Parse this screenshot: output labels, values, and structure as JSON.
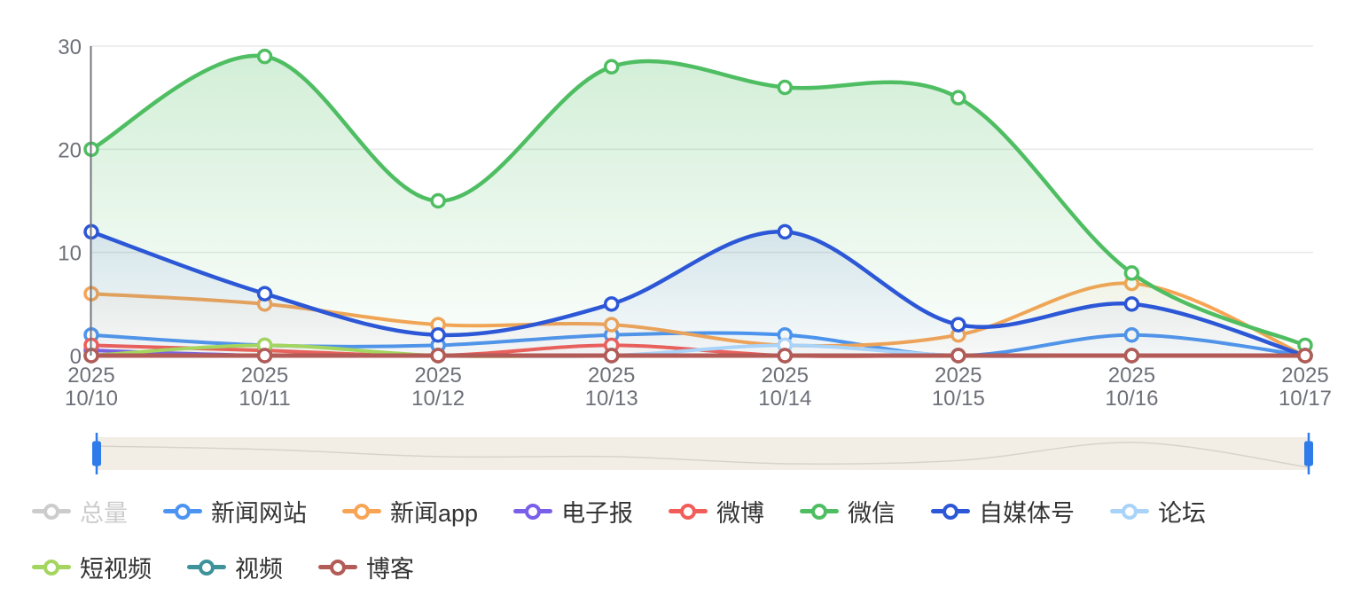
{
  "chart_data": {
    "type": "line",
    "title": "",
    "x_year": "2025",
    "categories": [
      "10/10",
      "10/11",
      "10/12",
      "10/13",
      "10/14",
      "10/15",
      "10/16",
      "10/17"
    ],
    "xlabel": "",
    "ylabel": "",
    "ylim": [
      0,
      30
    ],
    "yticks": [
      "0",
      "10",
      "20",
      "30"
    ],
    "grid": true,
    "smooth": true,
    "legend_position": "bottom",
    "series": [
      {
        "id": "total",
        "name": "总量",
        "color": "#C9C9C9",
        "selected": false,
        "values": null
      },
      {
        "id": "news-site",
        "name": "新闻网站",
        "color": "#4C94F2",
        "selected": true,
        "values": [
          2,
          1,
          1,
          2,
          2,
          0,
          2,
          0
        ]
      },
      {
        "id": "news-app",
        "name": "新闻app",
        "color": "#F8A455",
        "selected": true,
        "values": [
          6,
          5,
          3,
          3,
          1,
          2,
          7,
          0
        ]
      },
      {
        "id": "e-paper",
        "name": "电子报",
        "color": "#7A5FE8",
        "selected": true,
        "values": [
          0.5,
          0,
          0,
          0,
          0,
          0,
          0,
          0
        ]
      },
      {
        "id": "weibo",
        "name": "微博",
        "color": "#F15E59",
        "selected": true,
        "values": [
          1,
          0.5,
          0,
          1,
          0,
          0,
          0,
          0
        ]
      },
      {
        "id": "wechat",
        "name": "微信",
        "color": "#4FBE62",
        "selected": true,
        "values": [
          20,
          29,
          15,
          28,
          26,
          25,
          8,
          1
        ]
      },
      {
        "id": "we-media",
        "name": "自媒体号",
        "color": "#2C57D6",
        "selected": true,
        "values": [
          12,
          6,
          2,
          5,
          12,
          3,
          5,
          0
        ]
      },
      {
        "id": "forum",
        "name": "论坛",
        "color": "#A9D3F8",
        "selected": true,
        "values": [
          0,
          0,
          0,
          0,
          1,
          0,
          0,
          0
        ]
      },
      {
        "id": "short-video",
        "name": "短视频",
        "color": "#A4D55F",
        "selected": true,
        "values": [
          0,
          1,
          0,
          0,
          0,
          0,
          0,
          0
        ]
      },
      {
        "id": "video",
        "name": "视频",
        "color": "#3E939B",
        "selected": true,
        "values": [
          0,
          0,
          0,
          0,
          0,
          0,
          0,
          0
        ]
      },
      {
        "id": "blog",
        "name": "博客",
        "color": "#B25B57",
        "selected": true,
        "values": [
          0,
          0,
          0,
          0,
          0,
          0,
          0,
          0
        ]
      }
    ]
  },
  "slider": {
    "shadow_values": [
      6,
      5,
      3,
      3,
      1,
      2,
      7,
      0
    ],
    "track_color": "#F2EEE6",
    "shadow_color": "#D8D3CA",
    "handle_color": "#2E7BE9"
  },
  "colors": {
    "axis_label": "#6E7079",
    "axis_line": "#73777D",
    "gridline": "#E8E8E8",
    "legend_text": "#333333",
    "legend_disabled": "#CCCCCC",
    "background": "#FFFFFF"
  }
}
